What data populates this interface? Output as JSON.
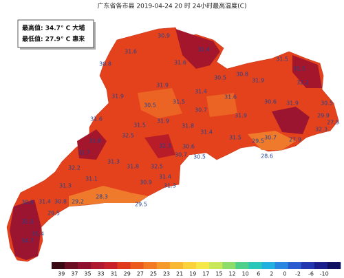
{
  "header": {
    "title": "广东省各市县 2019-04-24 20 时 24小时最高温度(C)"
  },
  "info_box": {
    "max_line": "最高值: 34.7° C 大埔",
    "min_line": "最低值: 27.9° C 惠来"
  },
  "station_values": [
    30.9,
    31.6,
    31.4,
    30.8,
    31.6,
    30.8,
    31.5,
    30.5,
    31.9,
    31.5,
    31.9,
    31.4,
    32.2,
    31.9,
    31.5,
    30.5,
    31.6,
    30.6,
    31.9,
    30.7,
    30.5,
    31.9,
    31.8,
    31.9,
    31.5,
    31.4,
    32.5,
    31.6,
    31.8,
    29.5,
    30.7,
    27.9,
    32.3,
    29.9,
    27.9,
    31.5,
    30.6,
    32.3,
    30.7,
    30.5,
    28.6,
    31.7,
    31.3,
    31.8,
    32.5,
    32.2,
    31.4,
    31.1,
    30.9,
    31.3,
    31.3,
    31.4,
    30.8,
    29.2,
    28.3,
    30.9,
    29.5,
    29.5,
    32.3,
    31.4,
    34.7
  ],
  "legend": {
    "colors": [
      "#3a0a14",
      "#6a0e24",
      "#8e1230",
      "#b01a30",
      "#c8202a",
      "#e03a1c",
      "#ec5a1e",
      "#f27a22",
      "#f59a28",
      "#f8b832",
      "#fad23c",
      "#f6e84a",
      "#c8e85a",
      "#8edc6a",
      "#4ed08a",
      "#2ac8b8",
      "#22b0e0",
      "#2a86e0",
      "#2a5ad0",
      "#2236b0",
      "#1a1e8a",
      "#101060"
    ],
    "ticks": [
      39,
      37,
      35,
      33,
      31,
      29,
      27,
      25,
      23,
      21,
      19,
      17,
      15,
      12,
      10,
      6,
      2,
      0,
      -2,
      -6,
      -10
    ]
  }
}
